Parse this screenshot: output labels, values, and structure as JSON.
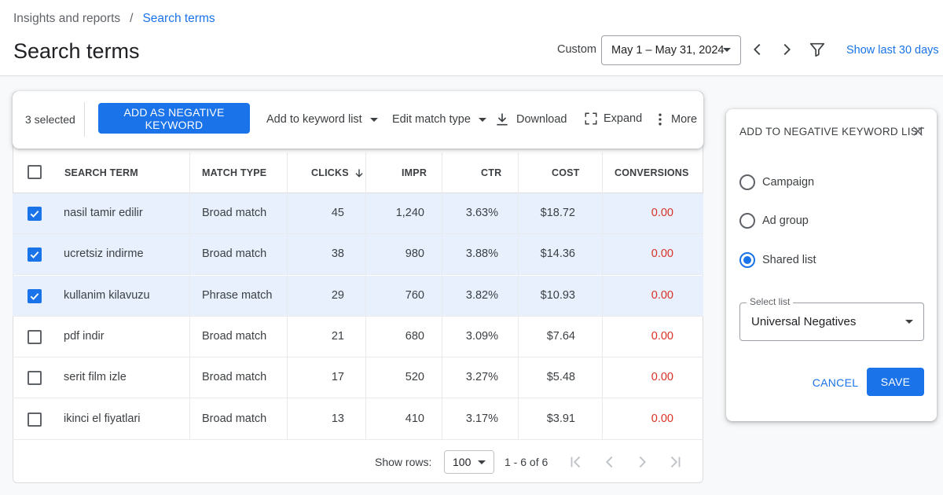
{
  "breadcrumb": {
    "parent": "Insights and reports",
    "separator": "/",
    "current": "Search terms"
  },
  "page": {
    "title": "Search terms"
  },
  "date": {
    "label": "Custom",
    "range": "May 1 – May 31, 2024",
    "show_last": "Show last 30 days"
  },
  "icons": {
    "prev": "chevron-left-icon",
    "next": "chevron-right-icon",
    "filter": "filter-icon",
    "download": "download-icon",
    "expand": "expand-icon",
    "more": "more-vertical-icon",
    "sort": "arrow-down-icon",
    "close": "close-icon",
    "check": "check-icon"
  },
  "action_bar": {
    "selected": "3 selected",
    "primary": "ADD AS NEGATIVE KEYWORD",
    "add_to_list": "Add to keyword list",
    "edit_match": "Edit match type",
    "download": "Download",
    "expand": "Expand",
    "more": "More"
  },
  "table": {
    "headers": {
      "term": "SEARCH TERM",
      "match": "MATCH TYPE",
      "clicks": "CLICKS",
      "impr": "IMPR",
      "ctr": "CTR",
      "cost": "COST",
      "conversions": "CONVERSIONS"
    },
    "rows": [
      {
        "checked": true,
        "term": "nasil tamir edilir",
        "match": "Broad match",
        "clicks": "45",
        "impr": "1,240",
        "ctr": "3.63%",
        "cost": "$18.72",
        "conv": "0.00"
      },
      {
        "checked": true,
        "term": "ucretsiz indirme",
        "match": "Broad match",
        "clicks": "38",
        "impr": "980",
        "ctr": "3.88%",
        "cost": "$14.36",
        "conv": "0.00"
      },
      {
        "checked": true,
        "term": "kullanim kilavuzu",
        "match": "Phrase match",
        "clicks": "29",
        "impr": "760",
        "ctr": "3.82%",
        "cost": "$10.93",
        "conv": "0.00"
      },
      {
        "checked": false,
        "term": "pdf indir",
        "match": "Broad match",
        "clicks": "21",
        "impr": "680",
        "ctr": "3.09%",
        "cost": "$7.64",
        "conv": "0.00"
      },
      {
        "checked": false,
        "term": "serit film izle",
        "match": "Broad match",
        "clicks": "17",
        "impr": "520",
        "ctr": "3.27%",
        "cost": "$5.48",
        "conv": "0.00"
      },
      {
        "checked": false,
        "term": "ikinci el fiyatlari",
        "match": "Broad match",
        "clicks": "13",
        "impr": "410",
        "ctr": "3.17%",
        "cost": "$3.91",
        "conv": "0.00"
      }
    ]
  },
  "pagination": {
    "rows_label": "Show rows:",
    "rows_value": "100",
    "range": "1 - 6 of 6"
  },
  "panel": {
    "title": "ADD TO NEGATIVE KEYWORD LIST",
    "options": [
      {
        "label": "Campaign",
        "selected": false
      },
      {
        "label": "Ad group",
        "selected": false
      },
      {
        "label": "Shared list",
        "selected": true
      }
    ],
    "select_label": "Select list",
    "select_value": "Universal Negatives",
    "cancel": "CANCEL",
    "save": "SAVE"
  },
  "colors": {
    "accent": "#1a73e8",
    "selected_row": "#e8f0fe",
    "negative": "#d93025"
  }
}
